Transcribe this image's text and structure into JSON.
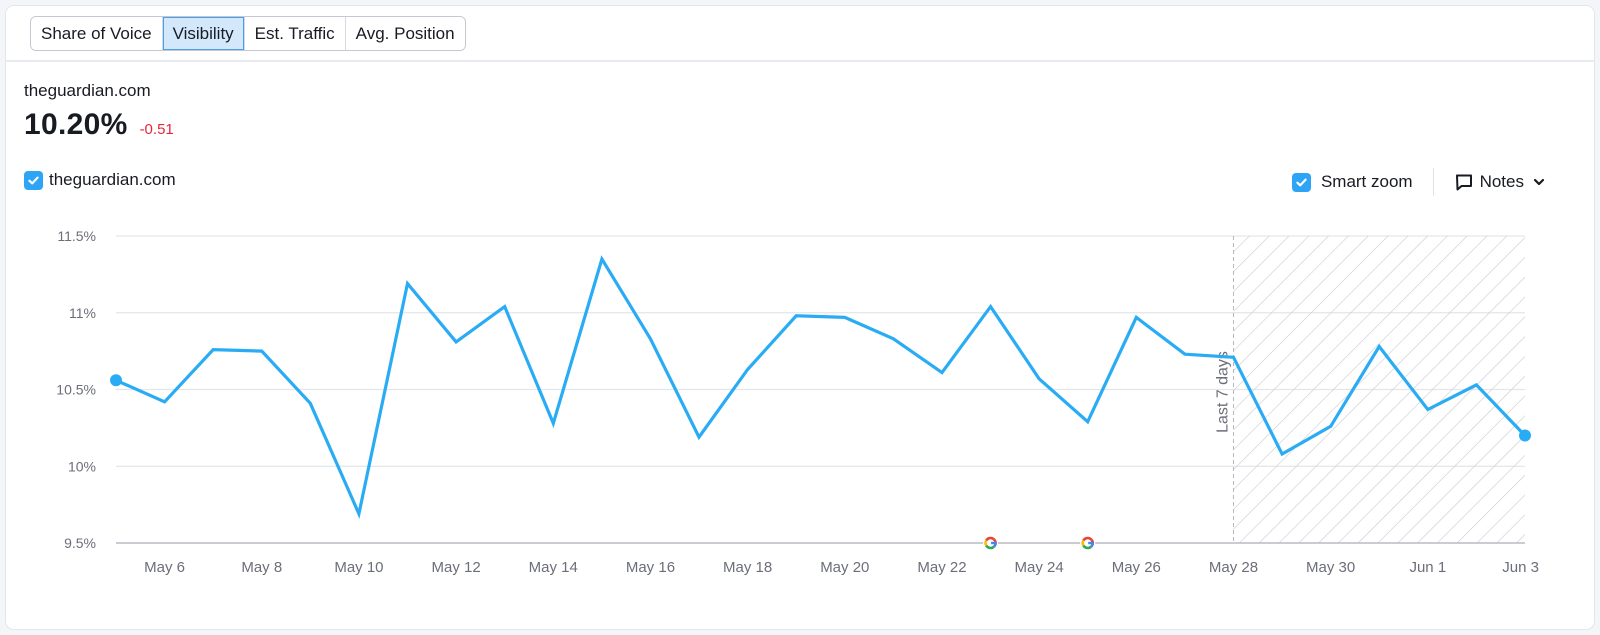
{
  "tabs": [
    {
      "label": "Share of Voice",
      "active": false
    },
    {
      "label": "Visibility",
      "active": true
    },
    {
      "label": "Est. Traffic",
      "active": false
    },
    {
      "label": "Avg. Position",
      "active": false
    }
  ],
  "summary": {
    "domain": "theguardian.com",
    "value": "10.20%",
    "delta": "-0.51",
    "delta_color": "#e5263a"
  },
  "legend": {
    "series_label": "theguardian.com",
    "checked": true
  },
  "controls": {
    "smart_zoom_label": "Smart zoom",
    "smart_zoom_checked": true,
    "notes_label": "Notes",
    "notes_icon": "comment-icon",
    "notes_chevron": "chevron-down-icon"
  },
  "colors": {
    "accent": "#2ea4f7",
    "line": "#2aacf5",
    "grid": "#e3e6ea",
    "axis": "#b8bcc3",
    "hatch": "#c9cbcf"
  },
  "chart_data": {
    "type": "line",
    "title": "",
    "xlabel": "",
    "ylabel": "Visibility",
    "ylim": [
      9.5,
      11.5
    ],
    "y_ticks": [
      "9.5%",
      "10%",
      "10.5%",
      "11%",
      "11.5%"
    ],
    "x_tick_labels": [
      "May 6",
      "May 8",
      "May 10",
      "May 12",
      "May 14",
      "May 16",
      "May 18",
      "May 20",
      "May 22",
      "May 24",
      "May 26",
      "May 28",
      "May 30",
      "Jun 1",
      "Jun 3"
    ],
    "grid": true,
    "legend_position": "top-left",
    "x": [
      "May 5",
      "May 6",
      "May 7",
      "May 8",
      "May 9",
      "May 10",
      "May 11",
      "May 12",
      "May 13",
      "May 14",
      "May 15",
      "May 16",
      "May 17",
      "May 18",
      "May 19",
      "May 20",
      "May 21",
      "May 22",
      "May 23",
      "May 24",
      "May 25",
      "May 26",
      "May 27",
      "May 28",
      "May 29",
      "May 30",
      "May 31",
      "Jun 1",
      "Jun 2",
      "Jun 3"
    ],
    "series": [
      {
        "name": "theguardian.com",
        "values": [
          10.56,
          10.42,
          10.76,
          10.75,
          10.41,
          9.69,
          11.19,
          10.81,
          11.04,
          10.28,
          11.35,
          10.83,
          10.19,
          10.63,
          10.98,
          10.97,
          10.83,
          10.61,
          11.04,
          10.57,
          10.29,
          10.97,
          10.73,
          10.71,
          10.08,
          10.26,
          10.78,
          10.37,
          10.53,
          10.2
        ]
      }
    ],
    "annotations": [
      {
        "type": "shaded-region",
        "label": "Last 7 days",
        "from": "May 28",
        "to": "Jun 3"
      },
      {
        "type": "google-update-marker",
        "date": "May 23",
        "icon": "google-icon"
      },
      {
        "type": "google-update-marker",
        "date": "May 25",
        "icon": "google-icon"
      }
    ]
  }
}
